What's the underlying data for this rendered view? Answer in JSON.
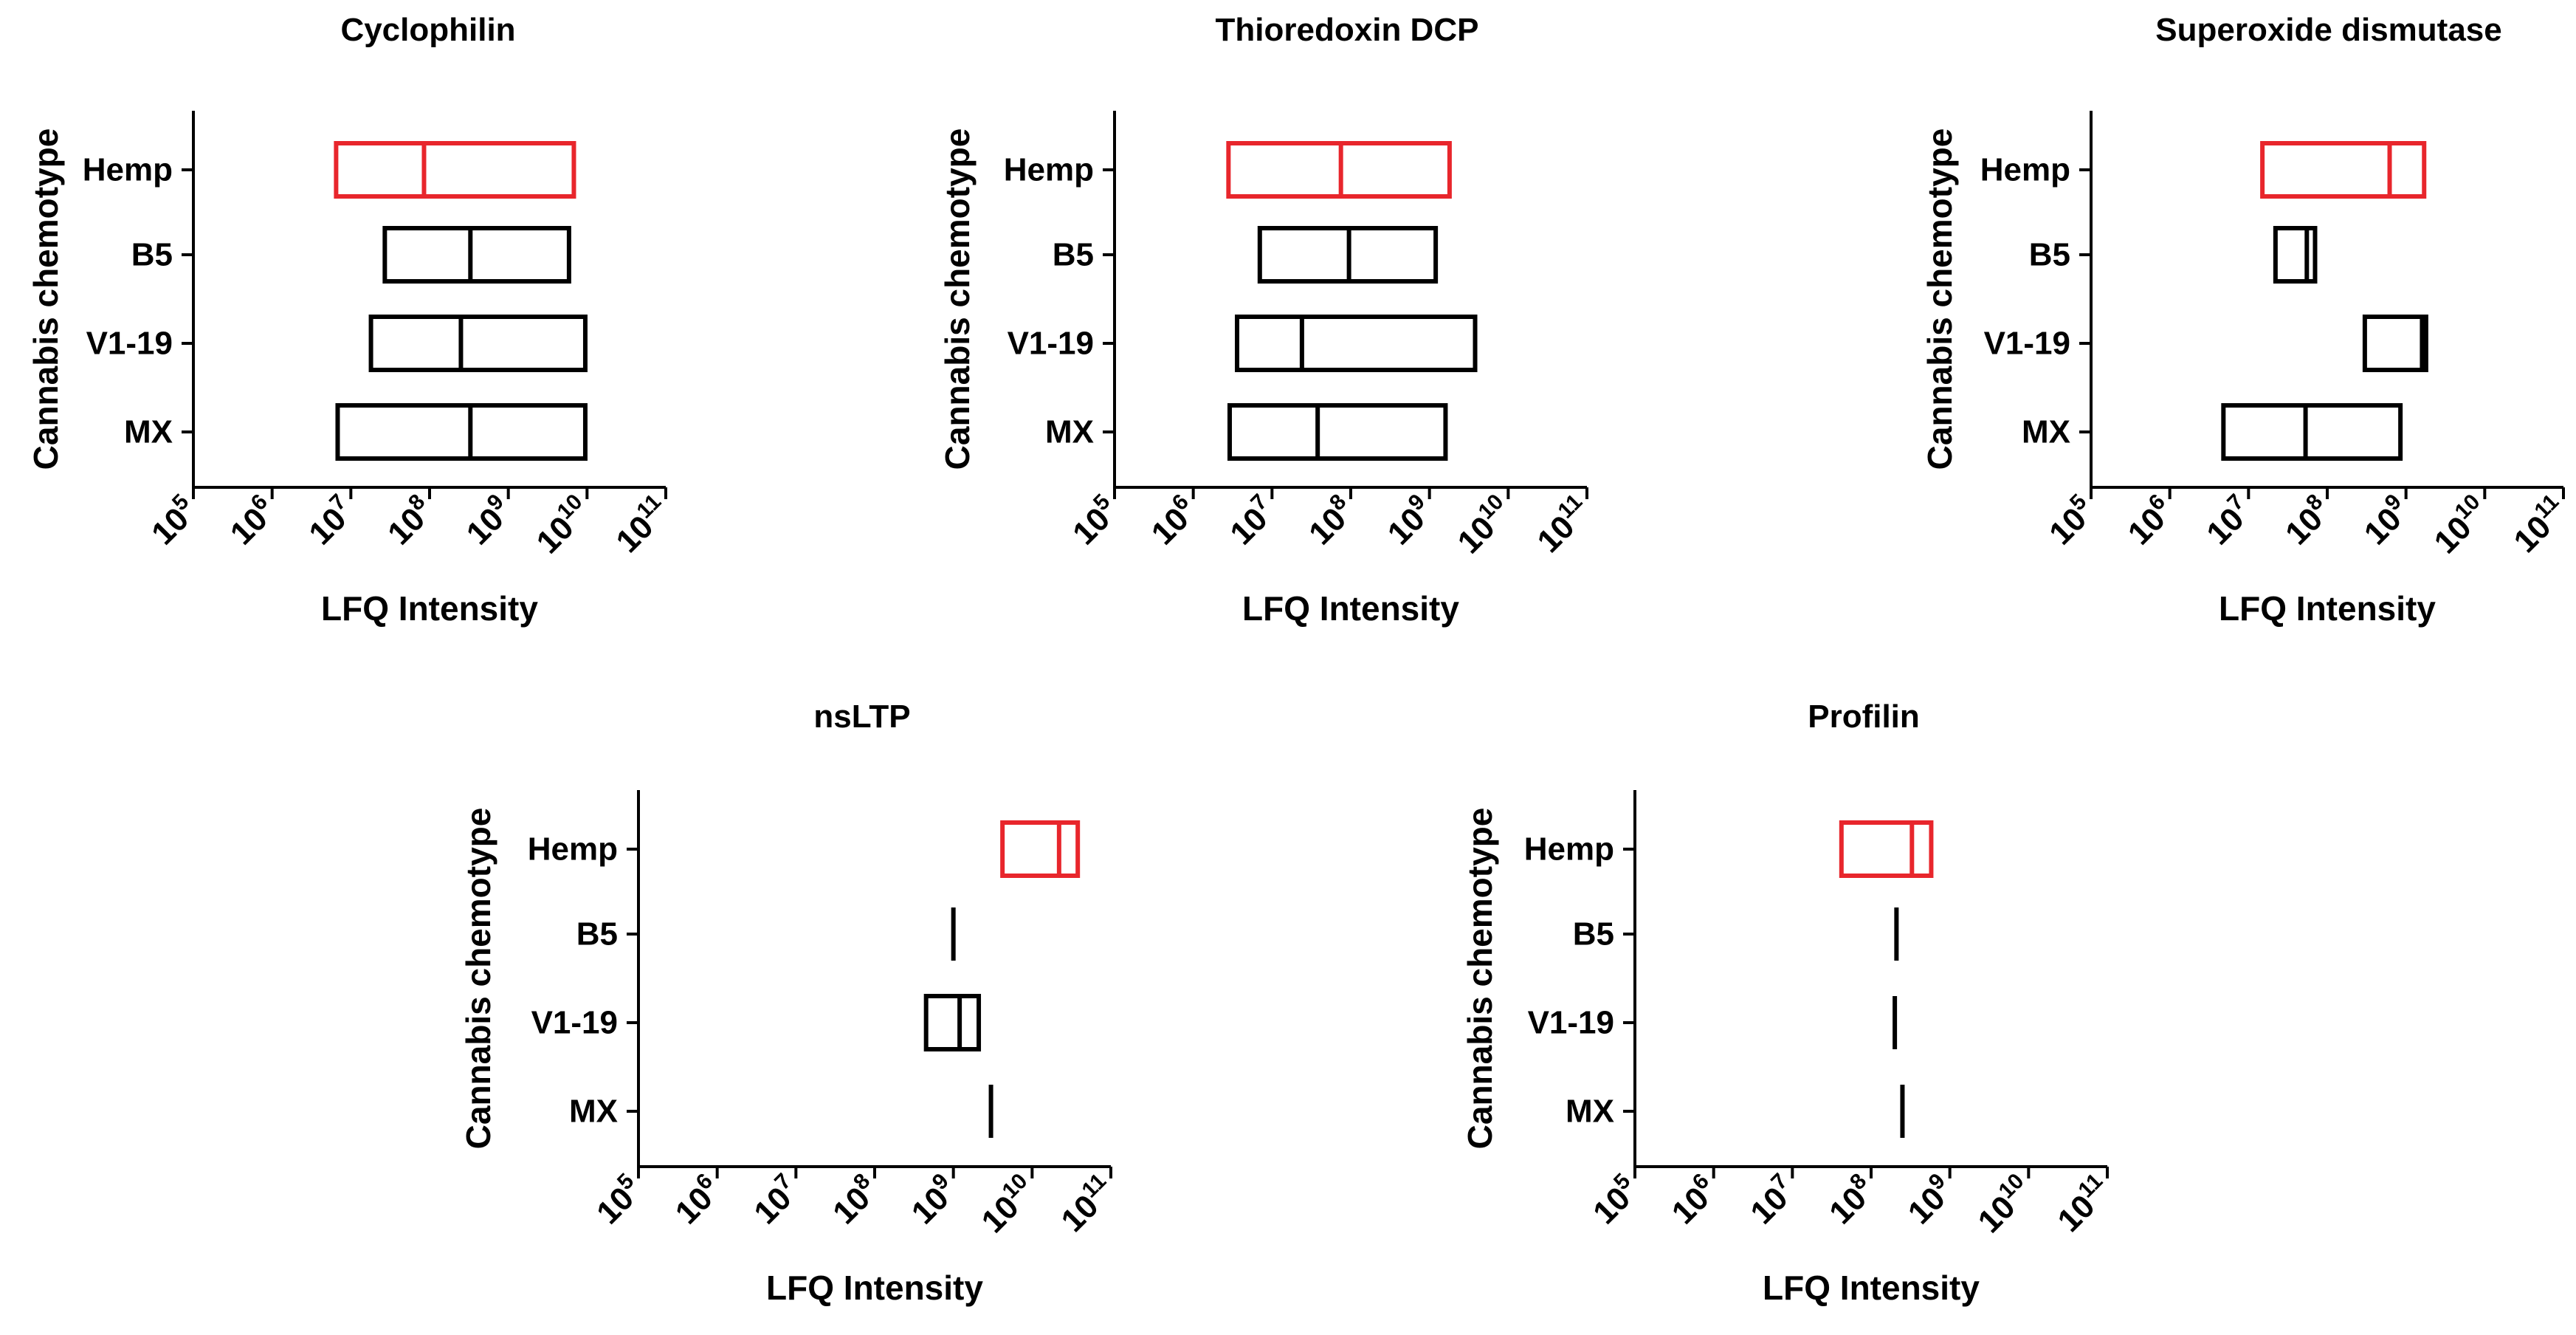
{
  "chart_data": [
    {
      "type": "floating-bar",
      "title": "Cyclophilin",
      "xlabel": "LFQ Intensity",
      "ylabel": "Cannabis chemotype",
      "xscale": "log10",
      "xlim": [
        100000,
        100000000000
      ],
      "xticks": [
        {
          "base": "10",
          "exp": "5"
        },
        {
          "base": "10",
          "exp": "6"
        },
        {
          "base": "10",
          "exp": "7"
        },
        {
          "base": "10",
          "exp": "8"
        },
        {
          "base": "10",
          "exp": "9"
        },
        {
          "base": "10",
          "exp": "10"
        },
        {
          "base": "10",
          "exp": "11"
        }
      ],
      "categories": [
        "Hemp",
        "B5",
        "V1-19",
        "MX"
      ],
      "bars": [
        {
          "category": "Hemp",
          "min": 6500000,
          "median": 85000000,
          "max": 6800000000,
          "color": "#e8262c"
        },
        {
          "category": "B5",
          "min": 27000000,
          "median": 330000000,
          "max": 5900000000,
          "color": "#000000"
        },
        {
          "category": "V1-19",
          "min": 18000000,
          "median": 250000000,
          "max": 9500000000,
          "color": "#000000"
        },
        {
          "category": "MX",
          "min": 6800000,
          "median": 330000000,
          "max": 9500000000,
          "color": "#000000"
        }
      ]
    },
    {
      "type": "floating-bar",
      "title": "Thioredoxin DCP",
      "xlabel": "LFQ Intensity",
      "ylabel": "Cannabis chemotype",
      "xscale": "log10",
      "xlim": [
        100000,
        100000000000
      ],
      "xticks": [
        {
          "base": "10",
          "exp": "5"
        },
        {
          "base": "10",
          "exp": "6"
        },
        {
          "base": "10",
          "exp": "7"
        },
        {
          "base": "10",
          "exp": "8"
        },
        {
          "base": "10",
          "exp": "9"
        },
        {
          "base": "10",
          "exp": "10"
        },
        {
          "base": "10",
          "exp": "11"
        }
      ],
      "categories": [
        "Hemp",
        "B5",
        "V1-19",
        "MX"
      ],
      "bars": [
        {
          "category": "Hemp",
          "min": 2800000,
          "median": 75000000,
          "max": 1800000000,
          "color": "#e8262c"
        },
        {
          "category": "B5",
          "min": 7000000,
          "median": 95000000,
          "max": 1200000000,
          "color": "#000000"
        },
        {
          "category": "V1-19",
          "min": 3600000,
          "median": 24000000,
          "max": 3800000000,
          "color": "#000000"
        },
        {
          "category": "MX",
          "min": 2900000,
          "median": 38000000,
          "max": 1600000000,
          "color": "#000000"
        }
      ]
    },
    {
      "type": "floating-bar",
      "title": "Superoxide dismutase",
      "xlabel": "LFQ Intensity",
      "ylabel": "Cannabis chemotype",
      "xscale": "log10",
      "xlim": [
        100000,
        100000000000
      ],
      "xticks": [
        {
          "base": "10",
          "exp": "5"
        },
        {
          "base": "10",
          "exp": "6"
        },
        {
          "base": "10",
          "exp": "7"
        },
        {
          "base": "10",
          "exp": "8"
        },
        {
          "base": "10",
          "exp": "9"
        },
        {
          "base": "10",
          "exp": "10"
        },
        {
          "base": "10",
          "exp": "11"
        }
      ],
      "categories": [
        "Hemp",
        "B5",
        "V1-19",
        "MX"
      ],
      "bars": [
        {
          "category": "Hemp",
          "min": 15000000,
          "median": 620000000,
          "max": 1700000000,
          "color": "#e8262c"
        },
        {
          "category": "B5",
          "min": 22000000,
          "median": 55000000,
          "max": 70000000,
          "color": "#000000"
        },
        {
          "category": "V1-19",
          "min": 300000000,
          "median": 1600000000,
          "max": 1800000000,
          "color": "#000000"
        },
        {
          "category": "MX",
          "min": 4800000,
          "median": 53000000,
          "max": 850000000,
          "color": "#000000"
        }
      ]
    },
    {
      "type": "floating-bar",
      "title": "nsLTP",
      "xlabel": "LFQ Intensity",
      "ylabel": "Cannabis chemotype",
      "xscale": "log10",
      "xlim": [
        100000,
        100000000000
      ],
      "xticks": [
        {
          "base": "10",
          "exp": "5"
        },
        {
          "base": "10",
          "exp": "6"
        },
        {
          "base": "10",
          "exp": "7"
        },
        {
          "base": "10",
          "exp": "8"
        },
        {
          "base": "10",
          "exp": "9"
        },
        {
          "base": "10",
          "exp": "10"
        },
        {
          "base": "10",
          "exp": "11"
        }
      ],
      "categories": [
        "Hemp",
        "B5",
        "V1-19",
        "MX"
      ],
      "bars": [
        {
          "category": "Hemp",
          "min": 4200000000,
          "median": 22000000000,
          "max": 38000000000,
          "color": "#e8262c"
        },
        {
          "category": "B5",
          "min": 1000000000,
          "median": 1000000000,
          "max": 1000000000,
          "color": "#000000"
        },
        {
          "category": "V1-19",
          "min": 450000000,
          "median": 1200000000,
          "max": 2100000000,
          "color": "#000000"
        },
        {
          "category": "MX",
          "min": 3000000000,
          "median": 3000000000,
          "max": 3000000000,
          "color": "#000000"
        }
      ]
    },
    {
      "type": "floating-bar",
      "title": "Profilin",
      "xlabel": "LFQ Intensity",
      "ylabel": "Cannabis chemotype",
      "xscale": "log10",
      "xlim": [
        100000,
        100000000000
      ],
      "xticks": [
        {
          "base": "10",
          "exp": "5"
        },
        {
          "base": "10",
          "exp": "6"
        },
        {
          "base": "10",
          "exp": "7"
        },
        {
          "base": "10",
          "exp": "8"
        },
        {
          "base": "10",
          "exp": "9"
        },
        {
          "base": "10",
          "exp": "10"
        },
        {
          "base": "10",
          "exp": "11"
        }
      ],
      "categories": [
        "Hemp",
        "B5",
        "V1-19",
        "MX"
      ],
      "bars": [
        {
          "category": "Hemp",
          "min": 42000000,
          "median": 330000000,
          "max": 580000000,
          "color": "#e8262c"
        },
        {
          "category": "B5",
          "min": 210000000,
          "median": 210000000,
          "max": 210000000,
          "color": "#000000"
        },
        {
          "category": "V1-19",
          "min": 200000000,
          "median": 200000000,
          "max": 200000000,
          "color": "#000000"
        },
        {
          "category": "MX",
          "min": 250000000,
          "median": 250000000,
          "max": 250000000,
          "color": "#000000"
        }
      ]
    }
  ]
}
